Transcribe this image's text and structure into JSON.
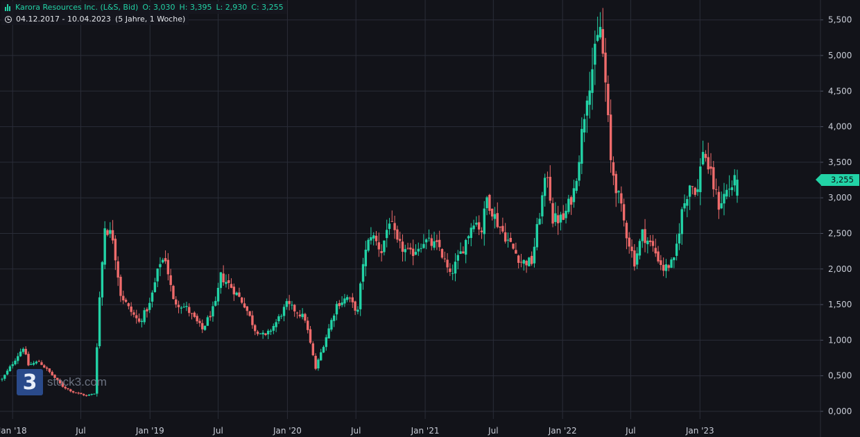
{
  "header": {
    "title": "Karora Resources Inc. (L&S, Bid)",
    "open": "O: 3,030",
    "high": "H: 3,395",
    "low": "L: 2,930",
    "close": "C: 3,255",
    "range": "04.12.2017 - 10.04.2023",
    "interval": "(5 Jahre, 1 Woche)"
  },
  "logo": {
    "badge": "3",
    "text": "stock3.com"
  },
  "last_price_label": "3,255",
  "colors": {
    "up": "#22d3a6",
    "down": "#ef6b6b",
    "background": "#121319",
    "grid": "#2a2d38",
    "text": "#c8ccd6"
  },
  "chart_data": {
    "type": "candlestick",
    "title": "Karora Resources Inc. (L&S, Bid)",
    "x_axis": {
      "start": "2017-12-04",
      "end": "2023-04-10",
      "tick_labels": [
        "Jan '18",
        "Jul",
        "Jan '19",
        "Jul",
        "Jan '20",
        "Jul",
        "Jan '21",
        "Jul",
        "Jan '22",
        "Jul",
        "Jan '23"
      ]
    },
    "y_axis": {
      "range": [
        0,
        5.6
      ],
      "ticks": [
        "0,000",
        "0,500",
        "1,000",
        "1,500",
        "2,000",
        "2,500",
        "3,000",
        "3,500",
        "4,000",
        "4,500",
        "5,000",
        "5,500"
      ],
      "position": "right"
    },
    "grid": true,
    "series": [
      {
        "values": [
          {
            "date": "2017-12-04",
            "close": 0.45
          },
          {
            "date": "2018-01-29",
            "close": 0.9
          },
          {
            "date": "2018-02-12",
            "close": 0.65
          },
          {
            "date": "2018-03-12",
            "close": 0.7
          },
          {
            "date": "2018-04-09",
            "close": 0.55
          },
          {
            "date": "2018-05-14",
            "close": 0.35
          },
          {
            "date": "2018-06-11",
            "close": 0.27
          },
          {
            "date": "2018-07-16",
            "close": 0.22
          },
          {
            "date": "2018-08-06",
            "close": 0.25
          },
          {
            "date": "2018-08-20",
            "close": 1.6
          },
          {
            "date": "2018-09-03",
            "close": 2.6
          },
          {
            "date": "2018-09-24",
            "close": 2.45
          },
          {
            "date": "2018-10-15",
            "close": 1.65
          },
          {
            "date": "2018-11-05",
            "close": 1.45
          },
          {
            "date": "2018-12-03",
            "close": 1.25
          },
          {
            "date": "2018-12-31",
            "close": 1.5
          },
          {
            "date": "2019-01-28",
            "close": 2.1
          },
          {
            "date": "2019-02-11",
            "close": 2.15
          },
          {
            "date": "2019-03-04",
            "close": 1.55
          },
          {
            "date": "2019-04-08",
            "close": 1.45
          },
          {
            "date": "2019-05-20",
            "close": 1.15
          },
          {
            "date": "2019-06-24",
            "close": 1.5
          },
          {
            "date": "2019-07-08",
            "close": 1.9
          },
          {
            "date": "2019-08-05",
            "close": 1.75
          },
          {
            "date": "2019-09-09",
            "close": 1.5
          },
          {
            "date": "2019-10-07",
            "close": 1.15
          },
          {
            "date": "2019-11-04",
            "close": 1.05
          },
          {
            "date": "2019-12-02",
            "close": 1.25
          },
          {
            "date": "2019-12-30",
            "close": 1.5
          },
          {
            "date": "2020-01-27",
            "close": 1.4
          },
          {
            "date": "2020-02-17",
            "close": 1.3
          },
          {
            "date": "2020-03-16",
            "close": 0.6
          },
          {
            "date": "2020-04-13",
            "close": 1.05
          },
          {
            "date": "2020-05-11",
            "close": 1.5
          },
          {
            "date": "2020-06-08",
            "close": 1.6
          },
          {
            "date": "2020-07-06",
            "close": 1.4
          },
          {
            "date": "2020-07-20",
            "close": 2.1
          },
          {
            "date": "2020-08-10",
            "close": 2.5
          },
          {
            "date": "2020-09-07",
            "close": 2.25
          },
          {
            "date": "2020-09-28",
            "close": 2.7
          },
          {
            "date": "2020-10-19",
            "close": 2.35
          },
          {
            "date": "2020-11-23",
            "close": 2.2
          },
          {
            "date": "2020-12-28",
            "close": 2.4
          },
          {
            "date": "2021-02-08",
            "close": 2.3
          },
          {
            "date": "2021-03-08",
            "close": 1.9
          },
          {
            "date": "2021-04-12",
            "close": 2.3
          },
          {
            "date": "2021-05-10",
            "close": 2.7
          },
          {
            "date": "2021-05-31",
            "close": 2.55
          },
          {
            "date": "2021-06-14",
            "close": 3.0
          },
          {
            "date": "2021-07-12",
            "close": 2.65
          },
          {
            "date": "2021-08-09",
            "close": 2.4
          },
          {
            "date": "2021-09-13",
            "close": 2.1
          },
          {
            "date": "2021-10-11",
            "close": 2.1
          },
          {
            "date": "2021-11-08",
            "close": 3.0
          },
          {
            "date": "2021-11-22",
            "close": 3.35
          },
          {
            "date": "2021-12-06",
            "close": 2.7
          },
          {
            "date": "2022-01-03",
            "close": 2.7
          },
          {
            "date": "2022-01-31",
            "close": 3.1
          },
          {
            "date": "2022-02-14",
            "close": 3.6
          },
          {
            "date": "2022-03-07",
            "close": 4.5
          },
          {
            "date": "2022-03-28",
            "close": 5.0
          },
          {
            "date": "2022-04-11",
            "close": 5.4
          },
          {
            "date": "2022-04-25",
            "close": 4.6
          },
          {
            "date": "2022-05-09",
            "close": 3.5
          },
          {
            "date": "2022-05-30",
            "close": 3.0
          },
          {
            "date": "2022-06-20",
            "close": 2.5
          },
          {
            "date": "2022-07-11",
            "close": 2.1
          },
          {
            "date": "2022-08-01",
            "close": 2.5
          },
          {
            "date": "2022-08-29",
            "close": 2.3
          },
          {
            "date": "2022-09-26",
            "close": 2.0
          },
          {
            "date": "2022-10-24",
            "close": 2.1
          },
          {
            "date": "2022-11-14",
            "close": 2.8
          },
          {
            "date": "2022-12-05",
            "close": 3.2
          },
          {
            "date": "2022-12-26",
            "close": 3.1
          },
          {
            "date": "2023-01-09",
            "close": 3.7
          },
          {
            "date": "2023-01-30",
            "close": 3.3
          },
          {
            "date": "2023-02-20",
            "close": 2.9
          },
          {
            "date": "2023-03-13",
            "close": 3.1
          },
          {
            "date": "2023-04-10",
            "close": 3.255
          }
        ]
      }
    ],
    "last": {
      "open": 3.03,
      "high": 3.395,
      "low": 2.93,
      "close": 3.255
    }
  }
}
